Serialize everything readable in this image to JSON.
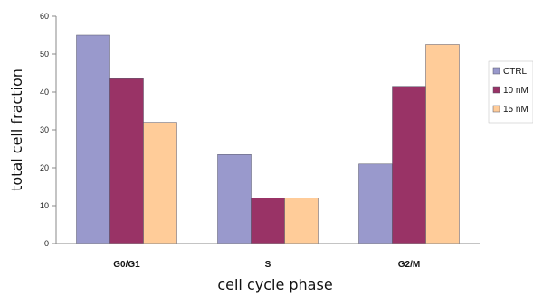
{
  "chart_data": {
    "type": "bar",
    "title": "",
    "xlabel": "cell cycle phase",
    "ylabel": "total cell fraction",
    "categories": [
      "G0/G1",
      "S",
      "G2/M"
    ],
    "series": [
      {
        "name": "CTRL",
        "values": [
          55,
          23.5,
          21
        ],
        "color": "#9999cc"
      },
      {
        "name": "10 nM",
        "values": [
          43.5,
          12,
          41.5
        ],
        "color": "#993366"
      },
      {
        "name": "15 nM",
        "values": [
          32,
          12,
          52.5
        ],
        "color": "#ffcc99"
      }
    ],
    "ylim": [
      0,
      60
    ],
    "yticks": [
      0,
      10,
      20,
      30,
      40,
      50,
      60
    ],
    "grid": false,
    "legend": "right"
  }
}
